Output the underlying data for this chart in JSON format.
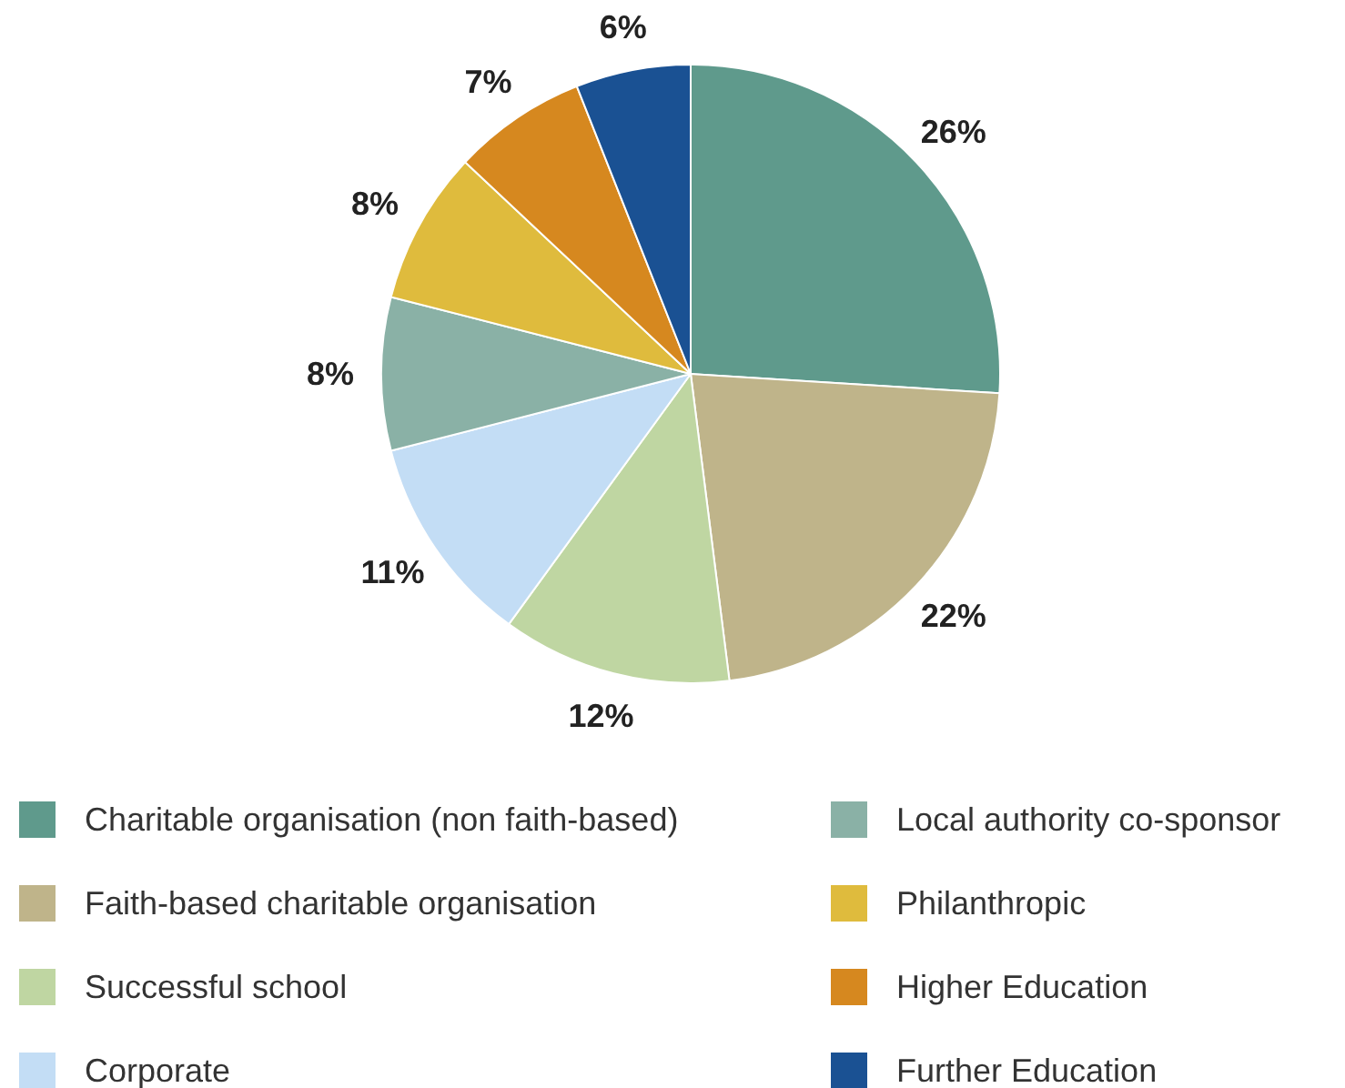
{
  "chart_data": {
    "type": "pie",
    "categories": [
      "Charitable organisation (non faith-based)",
      "Faith-based charitable organisation",
      "Successful school",
      "Corporate",
      "Local authority co-sponsor",
      "Philanthropic",
      "Higher Education",
      "Further Education"
    ],
    "values": [
      26,
      22,
      12,
      11,
      8,
      8,
      7,
      6
    ],
    "colors": [
      "#5f9a8c",
      "#bfb48a",
      "#bfd6a2",
      "#c3ddf5",
      "#8ab1a6",
      "#dfbb3d",
      "#d6881f",
      "#1a5193"
    ],
    "value_labels": [
      "26%",
      "22%",
      "12%",
      "11%",
      "8%",
      "8%",
      "7%",
      "6%"
    ],
    "legend": "bottom"
  }
}
